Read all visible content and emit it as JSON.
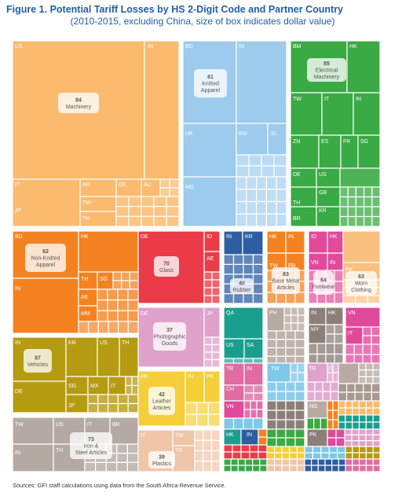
{
  "title": "Figure 1. Potential Tariff Losses by HS 2-Digit Code and Partner Country",
  "subtitle": "(2010-2015, excluding China, size of box indicates dollar value)",
  "source": "Sources: GFI staff calculations using data from the South Africa Revenue Service.",
  "chart_data": {
    "type": "treemap",
    "categories": [
      {
        "code": "84",
        "name": "Machinery",
        "color": "#fbbb6e",
        "partners": [
          "US",
          "IN",
          "IT",
          "JP",
          "KR",
          "DE",
          "AU",
          "TW",
          "TH"
        ]
      },
      {
        "code": "61",
        "name": "Knitted Apparel",
        "color": "#9ccbed",
        "partners": [
          "BD",
          "IN",
          "HK",
          "BW",
          "ID",
          "MG"
        ]
      },
      {
        "code": "85",
        "name": "Electrical Machinery",
        "color": "#3aaa44",
        "partners": [
          "BM",
          "HK",
          "TW",
          "IT",
          "IN",
          "ZN",
          "ES",
          "FR",
          "SG",
          "DE",
          "US",
          "GB",
          "TH",
          "KR",
          "BR"
        ]
      },
      {
        "code": "62",
        "name": "Non-Knitted Apparel",
        "color": "#f58220",
        "partners": [
          "BD",
          "HK",
          "IN",
          "TH",
          "SG",
          "AE",
          "MM"
        ]
      },
      {
        "code": "70",
        "name": "Glass",
        "color": "#ec3b48",
        "partners": [
          "DE",
          "ID",
          "AE"
        ]
      },
      {
        "code": "40",
        "name": "Rubber",
        "color": "#2c5ea1",
        "partners": [
          "IN",
          "KR"
        ]
      },
      {
        "code": "83",
        "name": "Base Metal Articles",
        "color": "#f58220",
        "partners": [
          "HK",
          "IN",
          "TW",
          "FR"
        ]
      },
      {
        "code": "64",
        "name": "Footwear",
        "color": "#e1499b",
        "partners": [
          "ID",
          "HK",
          "VN",
          "IN"
        ]
      },
      {
        "code": "63",
        "name": "Worn Clothing",
        "color": "#fbbf80",
        "partners": [
          "PK"
        ]
      },
      {
        "code": "37",
        "name": "Photographic Goods",
        "color": "#dfa2cb",
        "partners": [
          "DE",
          "JP"
        ]
      },
      {
        "code": "87",
        "name": "Vehicles",
        "color": "#b59b11",
        "partners": [
          "IN",
          "KR",
          "US",
          "TH",
          "DE",
          "SG",
          "MX",
          "IT",
          "JP"
        ]
      },
      {
        "code": "42",
        "name": "Leather Articles",
        "color": "#f5cf3a",
        "partners": [
          "HK",
          "IN",
          "PK"
        ]
      },
      {
        "code": "73",
        "name": "Iron & Steel Articles",
        "color": "#b5a9a4",
        "partners": [
          "TW",
          "US",
          "IT",
          "BR",
          "IN",
          "TH"
        ]
      },
      {
        "code": "39",
        "name": "Plastics",
        "color": "#f0c5a8",
        "partners": [
          "IT",
          "TW",
          "TR"
        ]
      }
    ],
    "unlabeled_partner_labels": [
      "QA",
      "US",
      "SA",
      "PH",
      "IN",
      "HK",
      "VN",
      "MY",
      "IT",
      "TR",
      "IN",
      "TW",
      "TR",
      "IT",
      "CH",
      "VN",
      "NG",
      "HK",
      "IN",
      "PK"
    ]
  }
}
